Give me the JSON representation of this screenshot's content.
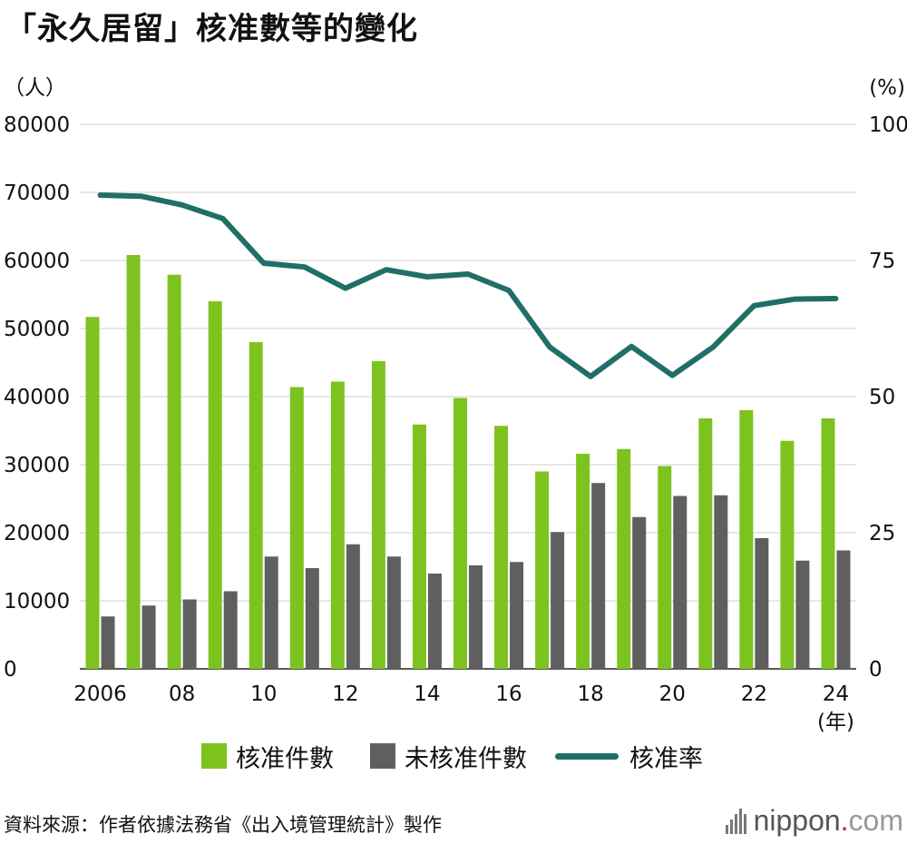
{
  "title": "「永久居留」核准數等的變化",
  "chart_data": {
    "type": "bar",
    "title": "「永久居留」核准數等的變化",
    "y_left_unit": "（人）",
    "y_right_unit": "(%)",
    "x_unit": "(年)",
    "y_left_range": [
      0,
      80000
    ],
    "y_right_range": [
      0,
      100
    ],
    "y_left_ticks": [
      "80000",
      "70000",
      "60000",
      "50000",
      "40000",
      "30000",
      "20000",
      "10000",
      "0"
    ],
    "y_right_ticks": [
      "100",
      "75",
      "50",
      "25",
      "0"
    ],
    "x_tick_labels": [
      "2006",
      "08",
      "10",
      "12",
      "14",
      "16",
      "18",
      "20",
      "22",
      "24"
    ],
    "years": [
      2006,
      2007,
      2008,
      2009,
      2010,
      2011,
      2012,
      2013,
      2014,
      2015,
      2016,
      2017,
      2018,
      2019,
      2020,
      2021,
      2022,
      2023,
      2024
    ],
    "grid": true,
    "legend_position": "bottom",
    "series": [
      {
        "name": "核准件數",
        "type": "bar",
        "axis": "left",
        "color": "#7dc31f",
        "values": [
          51700,
          60800,
          57900,
          54000,
          48000,
          41400,
          42200,
          45200,
          35900,
          39800,
          35700,
          29000,
          31600,
          32300,
          29800,
          36800,
          38000,
          33500,
          36800
        ]
      },
      {
        "name": "未核准件數",
        "type": "bar",
        "axis": "left",
        "color": "#5f5f5f",
        "values": [
          7700,
          9300,
          10200,
          11400,
          16500,
          14800,
          18300,
          16500,
          14000,
          15200,
          15700,
          20100,
          27300,
          22300,
          25400,
          25500,
          19200,
          15900,
          17400
        ]
      },
      {
        "name": "核准率",
        "type": "line",
        "axis": "right",
        "color": "#1f6f68",
        "values": [
          87.0,
          86.8,
          85.2,
          82.7,
          74.5,
          73.8,
          69.9,
          73.3,
          72.0,
          72.5,
          69.5,
          59.1,
          53.7,
          59.2,
          53.9,
          59.1,
          66.7,
          67.9,
          68.0
        ]
      }
    ]
  },
  "legend": [
    {
      "label": "核准件數",
      "color": "#7dc31f"
    },
    {
      "label": "未核准件數",
      "color": "#5f5f5f"
    },
    {
      "label": "核准率",
      "color": "#1f6f68"
    }
  ],
  "source": "資料來源：作者依據法務省《出入境管理統計》製作",
  "brand": {
    "name": "nippon",
    "dot": ".",
    "tld": "com"
  }
}
